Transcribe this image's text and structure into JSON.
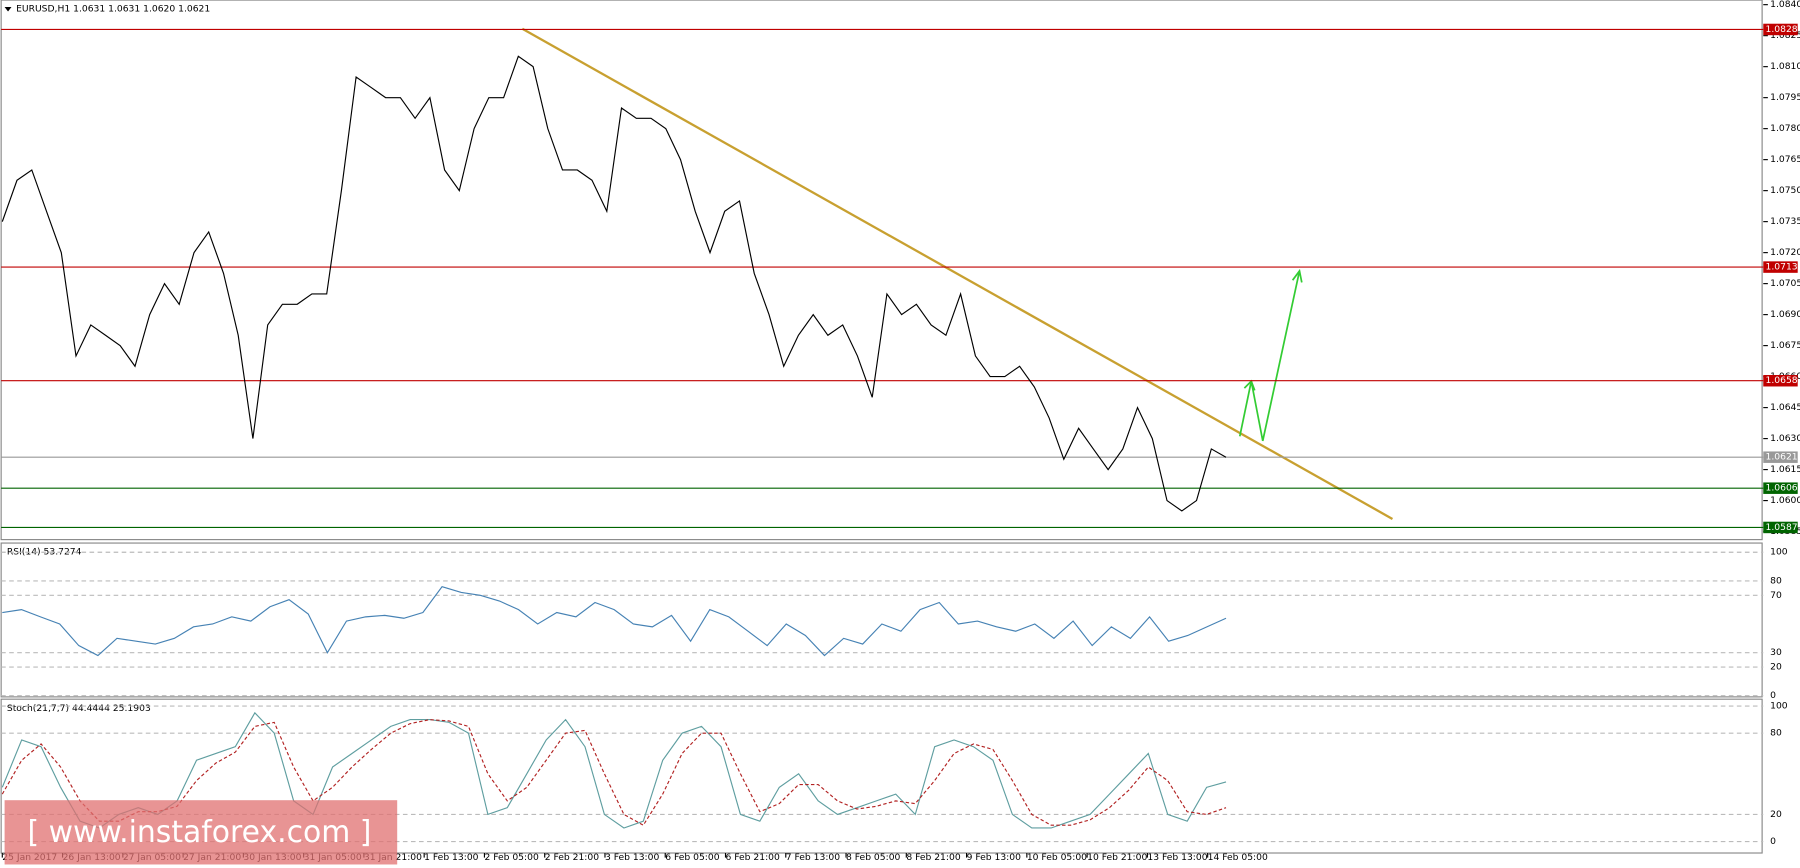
{
  "chart_data": {
    "type": "price-chart",
    "title": "EURUSD,H1  1.0631 1.0631 1.0620 1.0621",
    "watermark": "[ www.instaforex.com ]",
    "price": {
      "color": "#000000",
      "values": [
        1.0735,
        1.0755,
        1.076,
        1.074,
        1.072,
        1.067,
        1.0685,
        1.068,
        1.0675,
        1.0665,
        1.069,
        1.0705,
        1.0695,
        1.072,
        1.073,
        1.071,
        1.068,
        1.063,
        1.0685,
        1.0695,
        1.0695,
        1.07,
        1.07,
        1.075,
        1.0805,
        1.08,
        1.0795,
        1.0795,
        1.0785,
        1.0795,
        1.076,
        1.075,
        1.078,
        1.0795,
        1.0795,
        1.0815,
        1.081,
        1.078,
        1.076,
        1.076,
        1.0755,
        1.074,
        1.079,
        1.0785,
        1.0785,
        1.078,
        1.0765,
        1.074,
        1.072,
        1.074,
        1.0745,
        1.071,
        1.069,
        1.0665,
        1.068,
        1.069,
        1.068,
        1.0685,
        1.067,
        1.065,
        1.07,
        1.069,
        1.0695,
        1.0685,
        1.068,
        1.07,
        1.067,
        1.066,
        1.066,
        1.0665,
        1.0655,
        1.064,
        1.062,
        1.0635,
        1.0625,
        1.0615,
        1.0625,
        1.0645,
        1.063,
        1.06,
        1.0595,
        1.06,
        1.0625,
        1.0621
      ],
      "ylim": [
        1.0585,
        1.084
      ],
      "yticks": [
        {
          "value": 1.084,
          "label": "1.0840"
        },
        {
          "value": 1.0825,
          "label": "1.0825"
        },
        {
          "value": 1.081,
          "label": "1.0810"
        },
        {
          "value": 1.0795,
          "label": "1.0795"
        },
        {
          "value": 1.078,
          "label": "1.0780"
        },
        {
          "value": 1.0765,
          "label": "1.0765"
        },
        {
          "value": 1.075,
          "label": "1.0750"
        },
        {
          "value": 1.0735,
          "label": "1.0735"
        },
        {
          "value": 1.072,
          "label": "1.0720"
        },
        {
          "value": 1.0705,
          "label": "1.0705"
        },
        {
          "value": 1.069,
          "label": "1.0690"
        },
        {
          "value": 1.0675,
          "label": "1.0675"
        },
        {
          "value": 1.066,
          "label": "1.0660"
        },
        {
          "value": 1.0645,
          "label": "1.0645"
        },
        {
          "value": 1.063,
          "label": "1.0630"
        },
        {
          "value": 1.0615,
          "label": "1.0615"
        },
        {
          "value": 1.06,
          "label": "1.0600"
        },
        {
          "value": 1.0585,
          "label": "1.0585"
        }
      ],
      "levels": [
        {
          "value": 1.0828,
          "color": "#c00000"
        },
        {
          "value": 1.0713,
          "color": "#c00000"
        },
        {
          "value": 1.0658,
          "color": "#c00000"
        },
        {
          "value": 1.0621,
          "color": "#999999"
        },
        {
          "value": 1.0606,
          "color": "#006400"
        },
        {
          "value": 1.0587,
          "color": "#006400"
        }
      ]
    },
    "categories": [
      "25 Jan 2017",
      "26 Jan 13:00",
      "27 Jan 05:00",
      "27 Jan 21:00",
      "30 Jan 13:00",
      "31 Jan 05:00",
      "31 Jan 21:00",
      "1 Feb 13:00",
      "2 Feb 05:00",
      "2 Feb 21:00",
      "3 Feb 13:00",
      "6 Feb 05:00",
      "6 Feb 21:00",
      "7 Feb 13:00",
      "8 Feb 05:00",
      "8 Feb 21:00",
      "9 Feb 13:00",
      "10 Feb 05:00",
      "10 Feb 21:00",
      "13 Feb 13:00",
      "14 Feb 05:00"
    ],
    "rsi": {
      "title": "RSI(14) 53.7274",
      "color": "#4682b4",
      "ylim": [
        0,
        100
      ],
      "yticks": [
        0,
        20,
        30,
        70,
        80,
        100
      ],
      "values": [
        58,
        60,
        55,
        50,
        35,
        28,
        40,
        38,
        36,
        40,
        48,
        50,
        55,
        52,
        62,
        67,
        57,
        30,
        52,
        55,
        56,
        54,
        58,
        76,
        72,
        70,
        66,
        60,
        50,
        58,
        55,
        65,
        60,
        50,
        48,
        56,
        38,
        60,
        55,
        45,
        35,
        50,
        42,
        28,
        40,
        36,
        50,
        45,
        60,
        65,
        50,
        52,
        48,
        45,
        50,
        40,
        52,
        35,
        48,
        40,
        55,
        38,
        42,
        48,
        54
      ]
    },
    "stoch": {
      "title": "Stoch(21,7,7) 44.4444 25.1903",
      "ylim": [
        0,
        100
      ],
      "yticks": [
        0,
        20,
        80,
        100
      ],
      "series": [
        {
          "color": "#5f9ea0",
          "values": [
            40,
            75,
            70,
            40,
            15,
            10,
            20,
            25,
            20,
            30,
            60,
            65,
            70,
            95,
            80,
            30,
            20,
            55,
            65,
            75,
            85,
            90,
            90,
            88,
            80,
            20,
            25,
            50,
            75,
            90,
            70,
            20,
            10,
            15,
            60,
            80,
            85,
            70,
            20,
            15,
            40,
            50,
            30,
            20,
            25,
            30,
            35,
            20,
            70,
            75,
            70,
            60,
            20,
            10,
            10,
            15,
            20,
            35,
            50,
            65,
            20,
            15,
            40,
            44
          ]
        },
        {
          "color": "#b22222",
          "values": [
            35,
            60,
            72,
            55,
            30,
            15,
            15,
            22,
            22,
            26,
            45,
            58,
            66,
            85,
            88,
            55,
            30,
            40,
            55,
            68,
            80,
            87,
            90,
            89,
            85,
            50,
            30,
            40,
            60,
            80,
            82,
            50,
            20,
            12,
            35,
            65,
            80,
            80,
            50,
            22,
            28,
            42,
            42,
            30,
            24,
            26,
            30,
            28,
            45,
            65,
            72,
            68,
            45,
            20,
            12,
            12,
            16,
            25,
            38,
            55,
            45,
            22,
            20,
            25
          ]
        }
      ]
    }
  }
}
